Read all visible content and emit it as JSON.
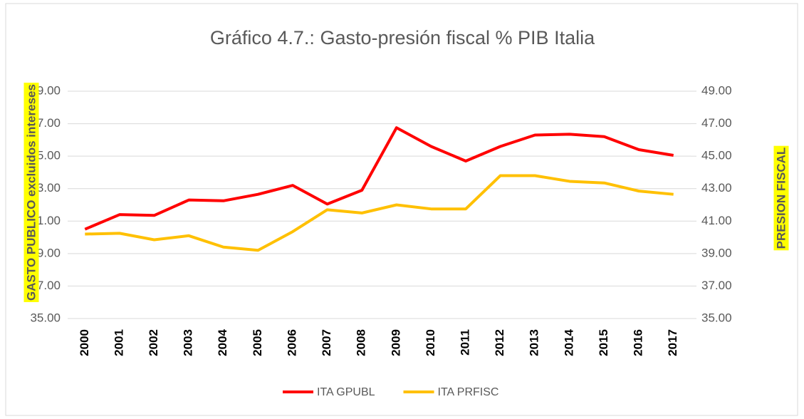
{
  "chart_data": {
    "type": "line",
    "title": "Gráfico 4.7.: Gasto-presión fiscal % PIB Italia",
    "y_label": "GASTO PUBLICO excluidos intereses",
    "y2_label": "PRESION FISCAL",
    "categories": [
      "2000",
      "2001",
      "2002",
      "2003",
      "2004",
      "2005",
      "2006",
      "2007",
      "2008",
      "2009",
      "2010",
      "2011",
      "2012",
      "2013",
      "2014",
      "2015",
      "2016",
      "2017"
    ],
    "series": [
      {
        "name": "ITA GPUBL",
        "color": "#ff0000",
        "values": [
          40.5,
          41.4,
          41.35,
          42.3,
          42.25,
          42.65,
          43.2,
          42.05,
          42.9,
          46.75,
          45.6,
          44.7,
          45.6,
          46.3,
          46.35,
          46.2,
          45.4,
          45.05
        ]
      },
      {
        "name": "ITA PRFISC",
        "color": "#ffc000",
        "axis": "y2",
        "values": [
          40.2,
          40.25,
          39.85,
          40.1,
          39.4,
          39.2,
          40.35,
          41.7,
          41.5,
          42.0,
          41.75,
          41.75,
          43.8,
          43.8,
          43.45,
          43.35,
          42.85,
          42.65
        ]
      }
    ],
    "ylim": [
      35,
      49
    ],
    "yticks": [
      {
        "value": 35,
        "label": "35.00"
      },
      {
        "value": 37,
        "label": "37.00"
      },
      {
        "value": 39,
        "label": "39.00"
      },
      {
        "value": 41,
        "label": "41.00"
      },
      {
        "value": 43,
        "label": "43.00"
      },
      {
        "value": 45,
        "label": "45.00"
      },
      {
        "value": 47,
        "label": "47.00"
      },
      {
        "value": 49,
        "label": "49.00"
      }
    ],
    "y2lim": [
      35,
      49
    ],
    "y2ticks": [
      {
        "value": 35,
        "label": "35.00"
      },
      {
        "value": 37,
        "label": "37.00"
      },
      {
        "value": 39,
        "label": "39.00"
      },
      {
        "value": 41,
        "label": "41.00"
      },
      {
        "value": 43,
        "label": "43.00"
      },
      {
        "value": 45,
        "label": "45.00"
      },
      {
        "value": 47,
        "label": "47.00"
      },
      {
        "value": 49,
        "label": "49.00"
      }
    ],
    "grid": true,
    "legend": "bottom"
  }
}
